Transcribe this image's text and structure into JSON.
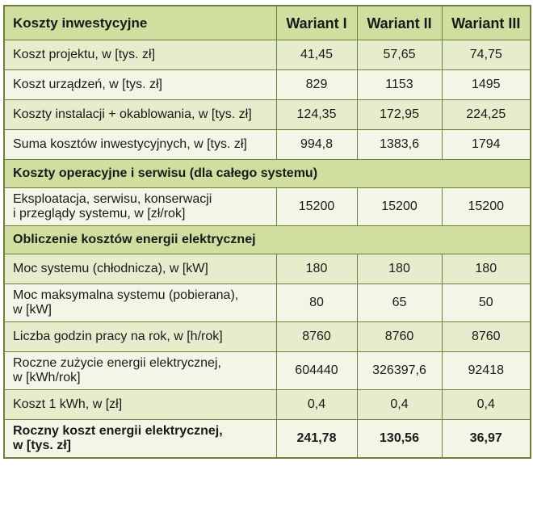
{
  "table": {
    "header": {
      "label": "Koszty inwestycyjne",
      "variants": [
        "Wariant I",
        "Wariant II",
        "Wariant III"
      ]
    },
    "investment_rows": [
      {
        "label": "Koszt projektu, w [tys. zł]",
        "values": [
          "41,45",
          "57,65",
          "74,75"
        ]
      },
      {
        "label": "Koszt urządzeń, w [tys. zł]",
        "values": [
          "829",
          "1153",
          "1495"
        ]
      },
      {
        "label": "Koszty instalacji + okablowania, w [tys. zł]",
        "values": [
          "124,35",
          "172,95",
          "224,25"
        ]
      },
      {
        "label": "Suma kosztów inwestycyjnych, w [tys. zł]",
        "values": [
          "994,8",
          "1383,6",
          "1794"
        ]
      }
    ],
    "operating_section": {
      "title": "Koszty operacyjne i serwisu (dla całego systemu)",
      "rows": [
        {
          "label_line1": "Eksploatacja, serwisu, konserwacji",
          "label_line2": "i przeglądy systemu, w [zł/rok]",
          "values": [
            "15200",
            "15200",
            "15200"
          ]
        }
      ]
    },
    "energy_section": {
      "title": "Obliczenie kosztów energii elektrycznej",
      "rows": [
        {
          "label_line1": "Moc systemu (chłodnicza), w [kW]",
          "label_line2": "",
          "values": [
            "180",
            "180",
            "180"
          ]
        },
        {
          "label_line1": "Moc maksymalna systemu (pobierana),",
          "label_line2": "w [kW]",
          "values": [
            "80",
            "65",
            "50"
          ]
        },
        {
          "label_line1": "Liczba godzin pracy na rok, w [h/rok]",
          "label_line2": "",
          "values": [
            "8760",
            "8760",
            "8760"
          ]
        },
        {
          "label_line1": "Roczne zużycie energii elektrycznej,",
          "label_line2": "w [kWh/rok]",
          "values": [
            "604440",
            "326397,6",
            "92418"
          ]
        },
        {
          "label_line1": "Koszt 1 kWh, w [zł]",
          "label_line2": "",
          "values": [
            "0,4",
            "0,4",
            "0,4"
          ]
        },
        {
          "label_line1": "Roczny koszt energii elektrycznej,",
          "label_line2": "w [tys. zł]",
          "values": [
            "241,78",
            "130,56",
            "36,97"
          ]
        }
      ]
    }
  }
}
